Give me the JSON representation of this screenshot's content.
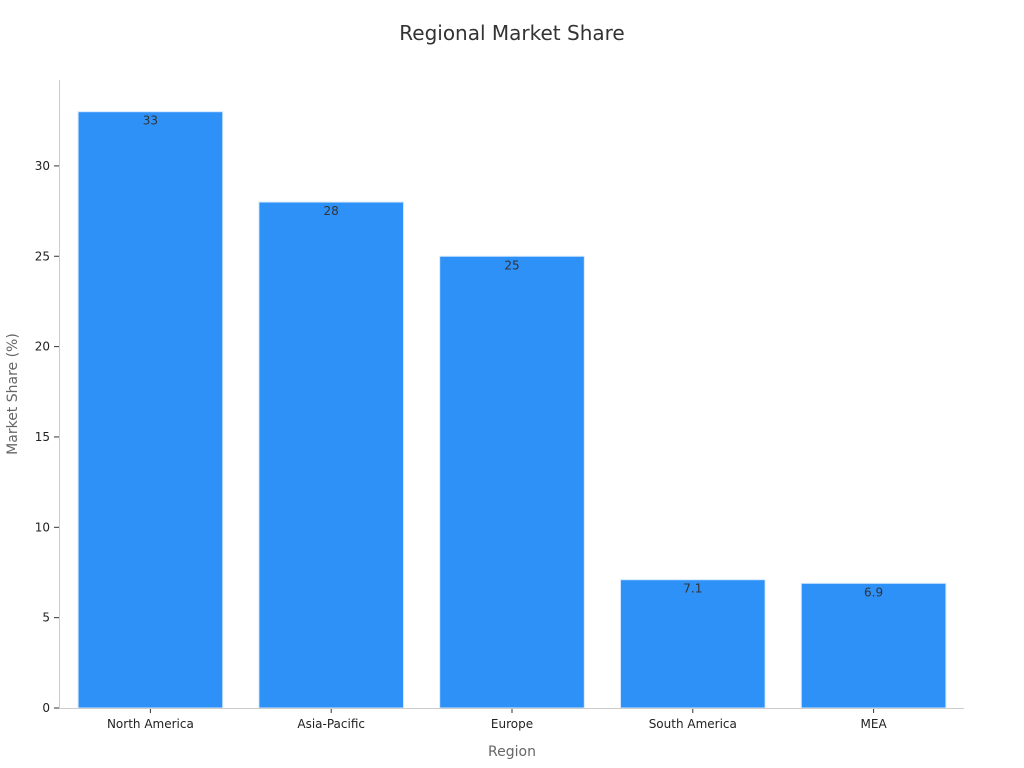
{
  "chart_data": {
    "type": "bar",
    "title": "Regional Market Share",
    "xlabel": "Region",
    "ylabel": "Market Share (%)",
    "categories": [
      "North America",
      "Asia-Pacific",
      "Europe",
      "South America",
      "MEA"
    ],
    "values": [
      33,
      28,
      25,
      7.1,
      6.9
    ],
    "value_labels": [
      "33",
      "28",
      "25",
      "7.1",
      "6.9"
    ],
    "yticks": [
      0,
      5,
      10,
      15,
      20,
      25,
      30
    ],
    "ylim": [
      0,
      34.7
    ],
    "grid": false,
    "bar_color": "#2e91f8",
    "bar_edge_color": "#d6e9fd"
  }
}
